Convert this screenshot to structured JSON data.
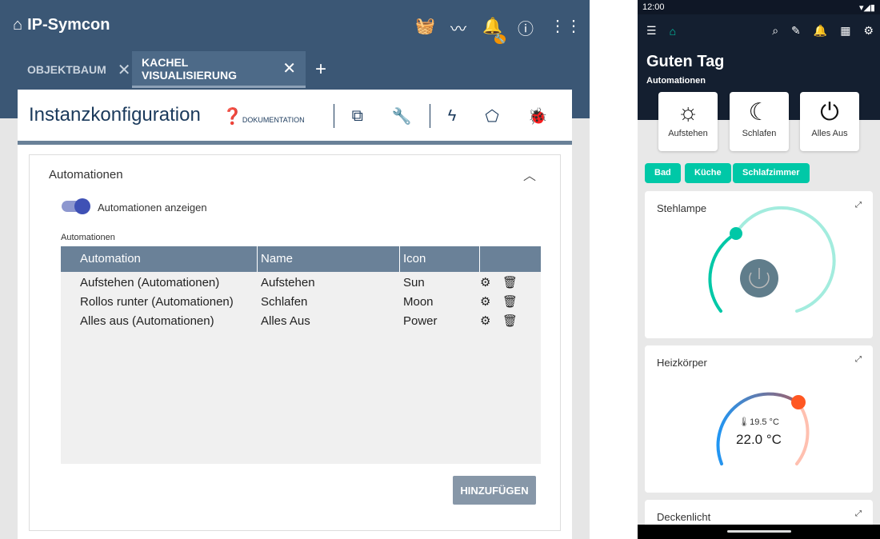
{
  "app": {
    "title": "IP-Symcon",
    "badge_icon": "wrench-icon",
    "icons": [
      "basket-icon",
      "chart-icon",
      "bell-icon",
      "info-icon",
      "apps-icon"
    ]
  },
  "tabs": [
    {
      "label": "OBJEKTBAUM",
      "active": false
    },
    {
      "label": "KACHEL VISUALISIERUNG",
      "active": true
    }
  ],
  "card": {
    "title": "Instanzkonfiguration",
    "doc_label": "DOKUMENTATION"
  },
  "panel": {
    "title": "Automationen",
    "toggle_label": "Automationen anzeigen",
    "toggle_on": true,
    "table_caption": "Automationen",
    "columns": [
      "Automation",
      "Name",
      "Icon"
    ],
    "rows": [
      [
        "Aufstehen (Automationen)",
        "Aufstehen",
        "Sun"
      ],
      [
        "Rollos runter (Automationen)",
        "Schlafen",
        "Moon"
      ],
      [
        "Alles aus (Automationen)",
        "Alles Aus",
        "Power"
      ]
    ],
    "add_label": "HINZUFÜGEN"
  },
  "phone": {
    "time": "12:00",
    "greeting": "Guten Tag",
    "automations_label": "Automationen",
    "automations": [
      {
        "label": "Aufstehen",
        "icon": "sun-icon"
      },
      {
        "label": "Schlafen",
        "icon": "moon-icon"
      },
      {
        "label": "Alles Aus",
        "icon": "power-icon"
      }
    ],
    "rooms": [
      "Bad",
      "Küche",
      "Schlafzimmer"
    ],
    "tiles": [
      {
        "name": "Stehlampe"
      },
      {
        "name": "Heizkörper",
        "current": "19.5 °C",
        "target": "22.0 °C"
      },
      {
        "name": "Deckenlicht"
      }
    ],
    "accent": "#00c8a7"
  }
}
